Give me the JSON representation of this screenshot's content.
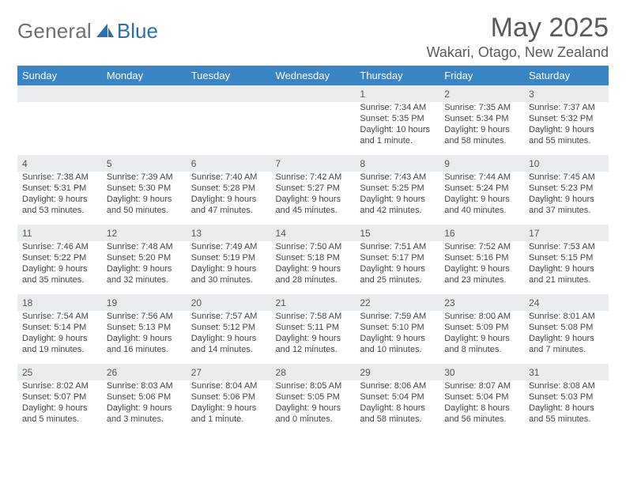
{
  "colors": {
    "header_bar": "#3b84c4",
    "daynum_bg": "#e9ecef",
    "logo_gray": "#6f6f6f",
    "logo_blue": "#2b6fb0",
    "text": "#444444"
  },
  "logo": {
    "word1": "General",
    "word2": "Blue"
  },
  "title": "May 2025",
  "location": "Wakari, Otago, New Zealand",
  "weekdays": [
    "Sunday",
    "Monday",
    "Tuesday",
    "Wednesday",
    "Thursday",
    "Friday",
    "Saturday"
  ],
  "first_weekday_index": 4,
  "days": [
    {
      "n": 1,
      "sunrise": "7:34 AM",
      "sunset": "5:35 PM",
      "daylight": "10 hours and 1 minute."
    },
    {
      "n": 2,
      "sunrise": "7:35 AM",
      "sunset": "5:34 PM",
      "daylight": "9 hours and 58 minutes."
    },
    {
      "n": 3,
      "sunrise": "7:37 AM",
      "sunset": "5:32 PM",
      "daylight": "9 hours and 55 minutes."
    },
    {
      "n": 4,
      "sunrise": "7:38 AM",
      "sunset": "5:31 PM",
      "daylight": "9 hours and 53 minutes."
    },
    {
      "n": 5,
      "sunrise": "7:39 AM",
      "sunset": "5:30 PM",
      "daylight": "9 hours and 50 minutes."
    },
    {
      "n": 6,
      "sunrise": "7:40 AM",
      "sunset": "5:28 PM",
      "daylight": "9 hours and 47 minutes."
    },
    {
      "n": 7,
      "sunrise": "7:42 AM",
      "sunset": "5:27 PM",
      "daylight": "9 hours and 45 minutes."
    },
    {
      "n": 8,
      "sunrise": "7:43 AM",
      "sunset": "5:25 PM",
      "daylight": "9 hours and 42 minutes."
    },
    {
      "n": 9,
      "sunrise": "7:44 AM",
      "sunset": "5:24 PM",
      "daylight": "9 hours and 40 minutes."
    },
    {
      "n": 10,
      "sunrise": "7:45 AM",
      "sunset": "5:23 PM",
      "daylight": "9 hours and 37 minutes."
    },
    {
      "n": 11,
      "sunrise": "7:46 AM",
      "sunset": "5:22 PM",
      "daylight": "9 hours and 35 minutes."
    },
    {
      "n": 12,
      "sunrise": "7:48 AM",
      "sunset": "5:20 PM",
      "daylight": "9 hours and 32 minutes."
    },
    {
      "n": 13,
      "sunrise": "7:49 AM",
      "sunset": "5:19 PM",
      "daylight": "9 hours and 30 minutes."
    },
    {
      "n": 14,
      "sunrise": "7:50 AM",
      "sunset": "5:18 PM",
      "daylight": "9 hours and 28 minutes."
    },
    {
      "n": 15,
      "sunrise": "7:51 AM",
      "sunset": "5:17 PM",
      "daylight": "9 hours and 25 minutes."
    },
    {
      "n": 16,
      "sunrise": "7:52 AM",
      "sunset": "5:16 PM",
      "daylight": "9 hours and 23 minutes."
    },
    {
      "n": 17,
      "sunrise": "7:53 AM",
      "sunset": "5:15 PM",
      "daylight": "9 hours and 21 minutes."
    },
    {
      "n": 18,
      "sunrise": "7:54 AM",
      "sunset": "5:14 PM",
      "daylight": "9 hours and 19 minutes."
    },
    {
      "n": 19,
      "sunrise": "7:56 AM",
      "sunset": "5:13 PM",
      "daylight": "9 hours and 16 minutes."
    },
    {
      "n": 20,
      "sunrise": "7:57 AM",
      "sunset": "5:12 PM",
      "daylight": "9 hours and 14 minutes."
    },
    {
      "n": 21,
      "sunrise": "7:58 AM",
      "sunset": "5:11 PM",
      "daylight": "9 hours and 12 minutes."
    },
    {
      "n": 22,
      "sunrise": "7:59 AM",
      "sunset": "5:10 PM",
      "daylight": "9 hours and 10 minutes."
    },
    {
      "n": 23,
      "sunrise": "8:00 AM",
      "sunset": "5:09 PM",
      "daylight": "9 hours and 8 minutes."
    },
    {
      "n": 24,
      "sunrise": "8:01 AM",
      "sunset": "5:08 PM",
      "daylight": "9 hours and 7 minutes."
    },
    {
      "n": 25,
      "sunrise": "8:02 AM",
      "sunset": "5:07 PM",
      "daylight": "9 hours and 5 minutes."
    },
    {
      "n": 26,
      "sunrise": "8:03 AM",
      "sunset": "5:06 PM",
      "daylight": "9 hours and 3 minutes."
    },
    {
      "n": 27,
      "sunrise": "8:04 AM",
      "sunset": "5:06 PM",
      "daylight": "9 hours and 1 minute."
    },
    {
      "n": 28,
      "sunrise": "8:05 AM",
      "sunset": "5:05 PM",
      "daylight": "9 hours and 0 minutes."
    },
    {
      "n": 29,
      "sunrise": "8:06 AM",
      "sunset": "5:04 PM",
      "daylight": "8 hours and 58 minutes."
    },
    {
      "n": 30,
      "sunrise": "8:07 AM",
      "sunset": "5:04 PM",
      "daylight": "8 hours and 56 minutes."
    },
    {
      "n": 31,
      "sunrise": "8:08 AM",
      "sunset": "5:03 PM",
      "daylight": "8 hours and 55 minutes."
    }
  ],
  "labels": {
    "sunrise": "Sunrise:",
    "sunset": "Sunset:",
    "daylight": "Daylight:"
  }
}
